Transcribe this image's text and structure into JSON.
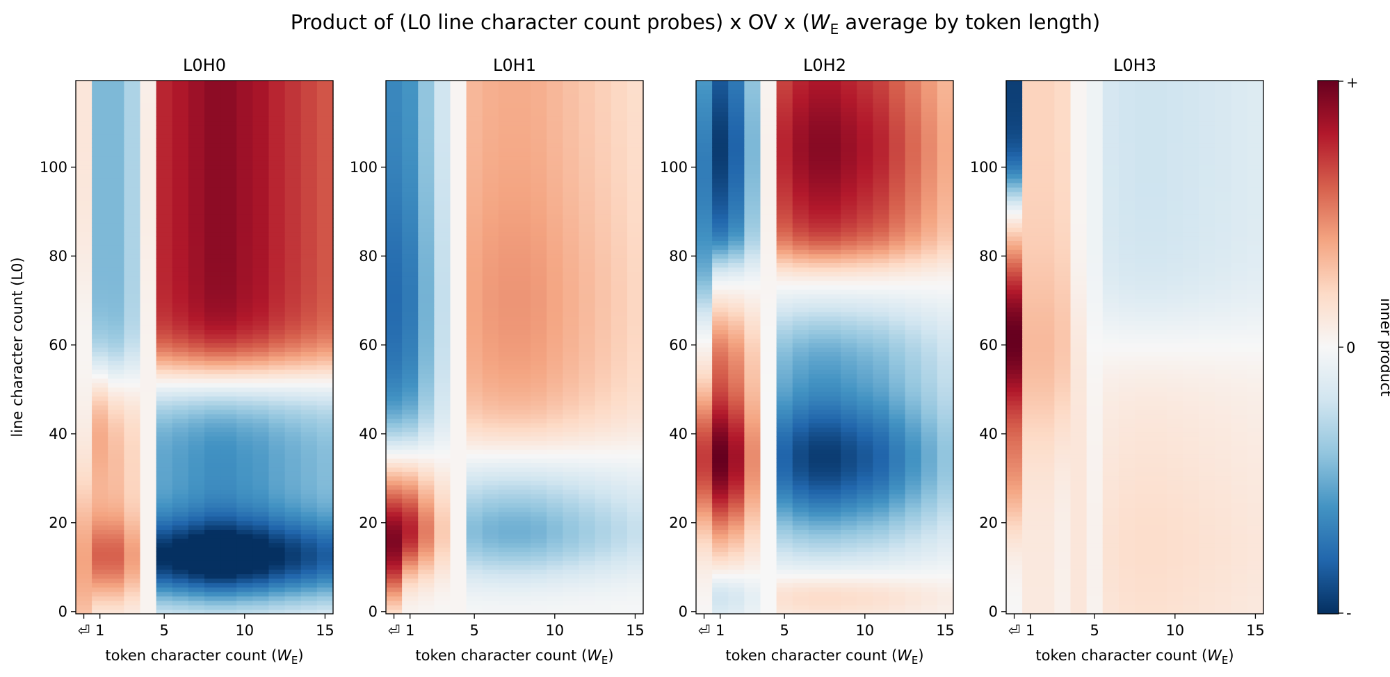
{
  "chart_data": {
    "type": "heatmap",
    "title": "Product of (L0 line character count probes) x OV x (W_E average by token length)",
    "title_parts": {
      "before": "Product of (L0 line character count probes) x OV x (",
      "sym": "W",
      "sub": "E",
      "after": " average by token length)"
    },
    "ylabel": "line character count (L0)",
    "xlabel": {
      "text": "token character count (",
      "sym": "W",
      "sub": "E",
      "close": ")"
    },
    "x_columns": [
      "newline",
      1,
      2,
      3,
      4,
      5,
      6,
      7,
      8,
      9,
      10,
      11,
      12,
      13,
      14,
      15
    ],
    "x_ticks": [
      "⏎",
      "1",
      "5",
      "10",
      "15"
    ],
    "x_tick_columns": [
      0,
      1,
      5,
      10,
      15
    ],
    "y_ticks": [
      "0",
      "20",
      "40",
      "60",
      "80",
      "100"
    ],
    "y_tick_values": [
      0,
      20,
      40,
      60,
      80,
      100
    ],
    "ylim": [
      0,
      120
    ],
    "value_range": [
      -1,
      1
    ],
    "colormap": "RdBu_r",
    "colorbar": {
      "label": "inner product",
      "top": "+",
      "middle": "0",
      "bottom": "-"
    },
    "panels": [
      {
        "name": "L0H0",
        "profiles": {
          "col_profile": [
            0.15,
            -0.55,
            -0.55,
            -0.4,
            0.05,
            0.85,
            0.9,
            0.95,
            1.0,
            1.0,
            0.95,
            0.92,
            0.85,
            0.8,
            0.75,
            0.7
          ],
          "row_profile": "positive above ~55, negative 5-45 (minimum near 12); column 1-3 sign flipped with strong red near 12"
        }
      },
      {
        "name": "L0H1",
        "profiles": {
          "col_profile": [
            -0.9,
            -0.35,
            -0.2,
            -0.15,
            0.0,
            0.55,
            0.6,
            0.62,
            0.62,
            0.6,
            0.55,
            0.5,
            0.45,
            0.4,
            0.35,
            0.3
          ],
          "row_profile": "positive above ~40, negative 10-35 (minimum near 18); column 0-3 sign flipped with red near 10-20"
        }
      },
      {
        "name": "L0H2",
        "profiles": {
          "col_profile": [
            -0.6,
            -0.85,
            -0.8,
            -0.45,
            0.0,
            0.8,
            0.9,
            0.95,
            0.95,
            0.9,
            0.85,
            0.8,
            0.7,
            0.6,
            0.5,
            0.4
          ],
          "row_profile": "positive above ~80, strongly negative 15-70 (minimum near 35); columns 0-3 sign flipped with deep red near 35"
        }
      },
      {
        "name": "L0H3",
        "profiles": {
          "col_profile": [
            -0.9,
            0.35,
            0.35,
            0.3,
            0.1,
            -0.1,
            -0.35,
            -0.4,
            -0.42,
            -0.42,
            -0.4,
            -0.38,
            -0.35,
            -0.33,
            -0.3,
            -0.28
          ],
          "row_profile": "columns 5-15 light blue above ~65, light red below ~60; column 0 deep red near 50-80, blue above 95"
        }
      }
    ]
  }
}
